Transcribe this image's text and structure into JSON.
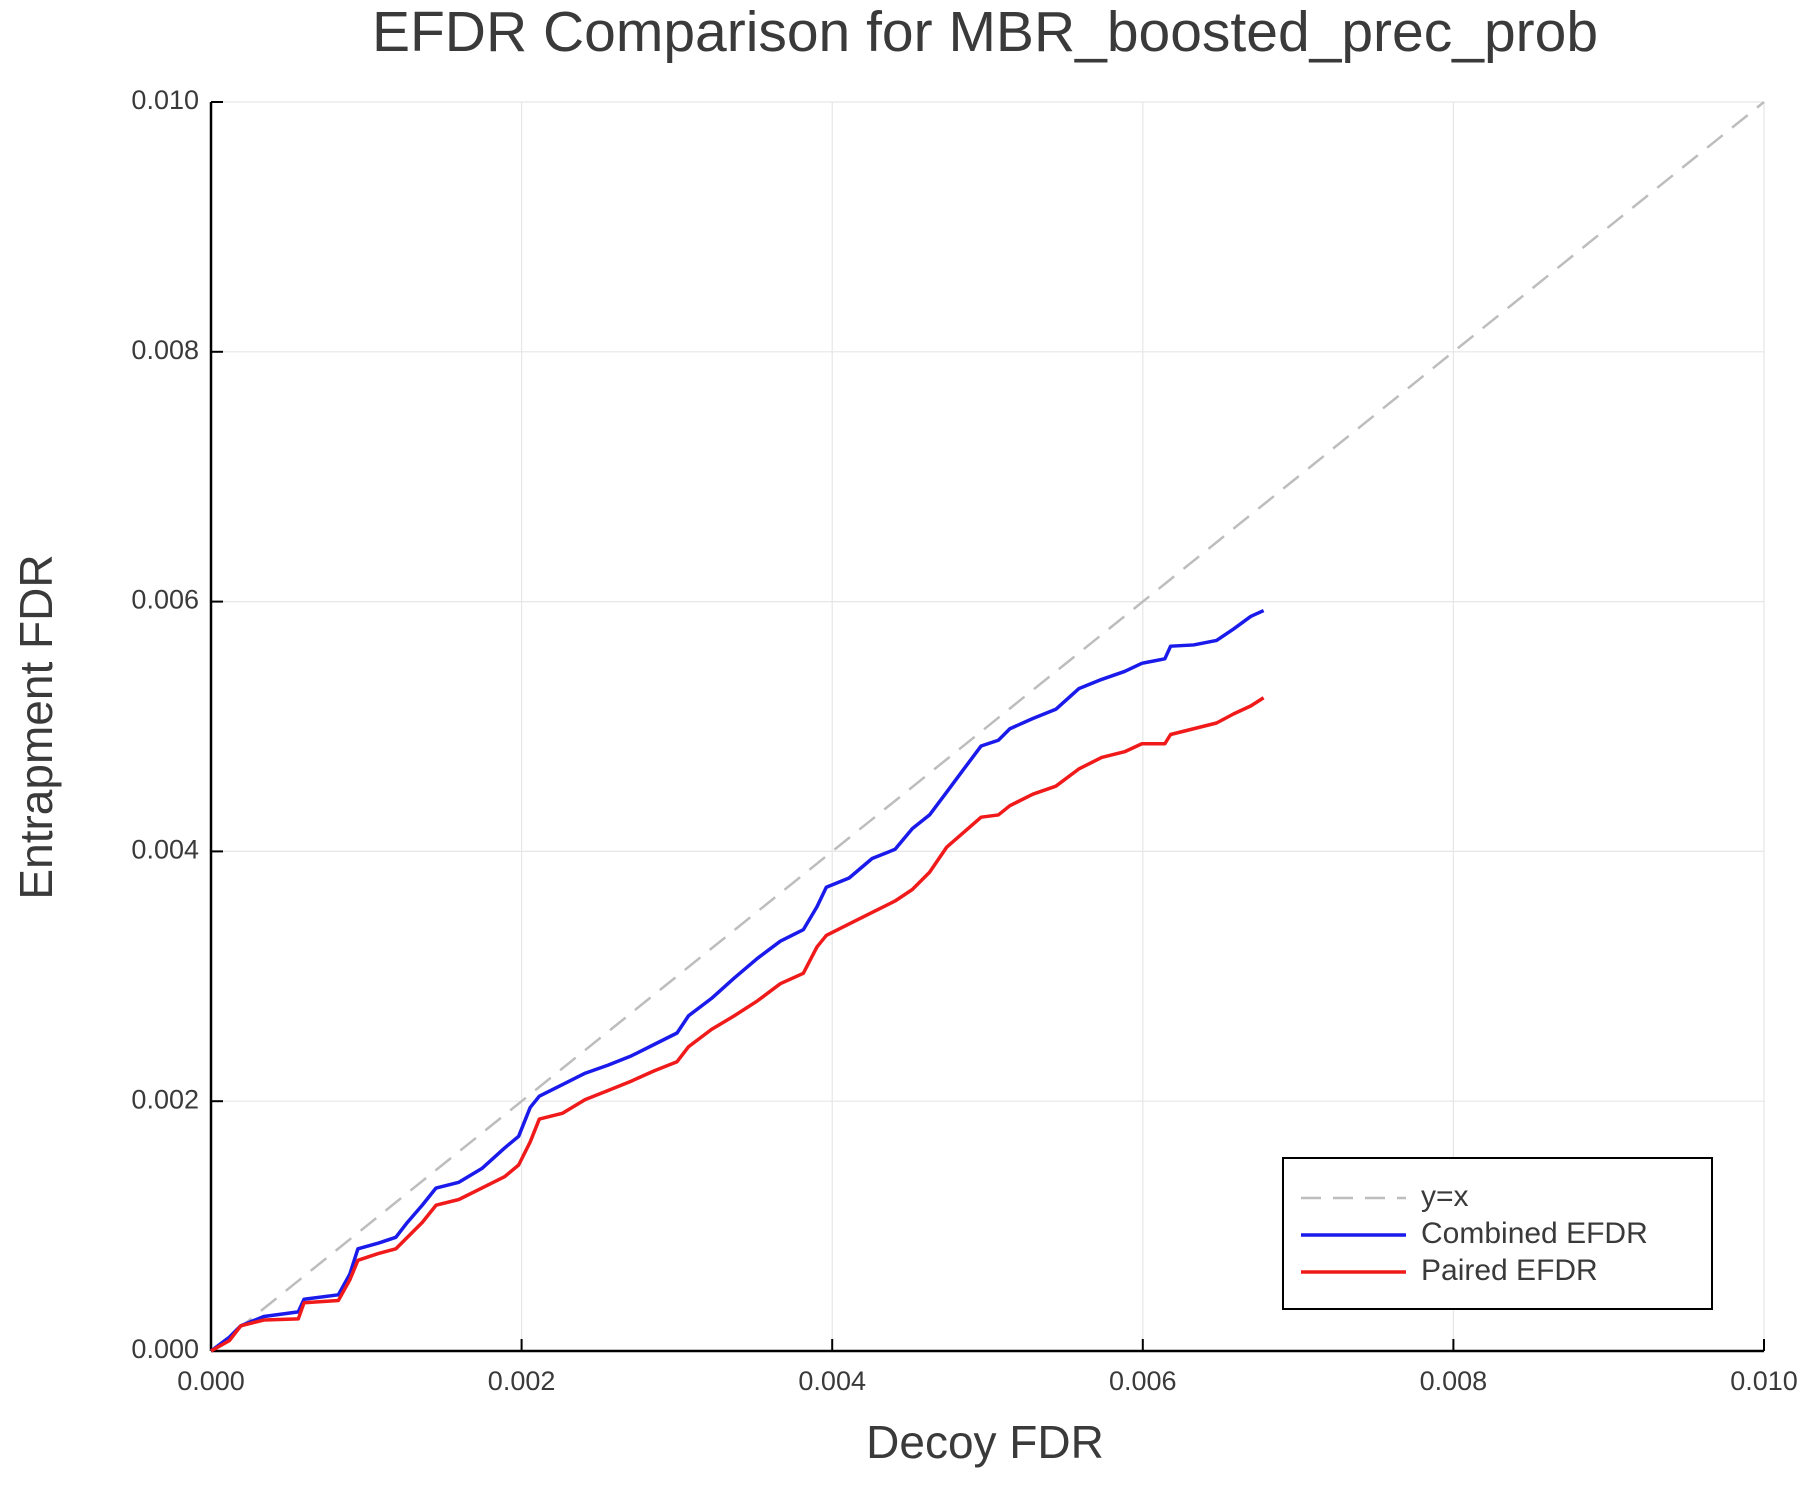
{
  "chart_data": {
    "type": "line",
    "title": "EFDR Comparison for MBR_boosted_prec_prob",
    "x_label": "Decoy FDR",
    "y_label": "Entrapment FDR",
    "xlim": [
      0,
      0.01
    ],
    "ylim": [
      0,
      0.01
    ],
    "xticks": [
      {
        "value": 0,
        "label": "0.000"
      },
      {
        "value": 0.002,
        "label": "0.002"
      },
      {
        "value": 0.004,
        "label": "0.004"
      },
      {
        "value": 0.006,
        "label": "0.006"
      },
      {
        "value": 0.008,
        "label": "0.008"
      },
      {
        "value": 0.01,
        "label": "0.010"
      }
    ],
    "yticks": [
      {
        "value": 0,
        "label": "0.000"
      },
      {
        "value": 0.002,
        "label": "0.002"
      },
      {
        "value": 0.004,
        "label": "0.004"
      },
      {
        "value": 0.006,
        "label": "0.006"
      },
      {
        "value": 0.008,
        "label": "0.008"
      },
      {
        "value": 0.01,
        "label": "0.010"
      }
    ],
    "grid": true,
    "legend": "lower right",
    "series": [
      {
        "name": "y=x",
        "color": "#bdbdbd",
        "dashed": true,
        "x": [
          0,
          0.01
        ],
        "values": [
          0,
          0.01
        ]
      },
      {
        "name": "Combined EFDR",
        "color": "#1a1aeb",
        "x": [
          0,
          0.000118,
          0.000192,
          0.00034,
          0.000562,
          0.000599,
          0.00082,
          0.000894,
          0.000946,
          0.001079,
          0.00119,
          0.001264,
          0.00136,
          0.001449,
          0.001596,
          0.001744,
          0.001892,
          0.001981,
          0.002055,
          0.002114,
          0.002262,
          0.002409,
          0.002557,
          0.002705,
          0.002853,
          0.003001,
          0.003075,
          0.003222,
          0.00337,
          0.003518,
          0.003666,
          0.003814,
          0.003902,
          0.003962,
          0.004109,
          0.004257,
          0.004405,
          0.004516,
          0.004627,
          0.004738,
          0.004848,
          0.004959,
          0.00507,
          0.005144,
          0.005292,
          0.00544,
          0.005588,
          0.005735,
          0.005883,
          0.005994,
          0.006142,
          0.006179,
          0.006327,
          0.006475,
          0.006585,
          0.006696,
          0.006778
        ],
        "values": [
          0,
          0.00011,
          0.000202,
          0.000276,
          0.000313,
          0.000414,
          0.00045,
          0.000616,
          0.000818,
          0.000864,
          0.00091,
          0.001029,
          0.001167,
          0.001305,
          0.001351,
          0.001461,
          0.001627,
          0.001719,
          0.001949,
          0.00204,
          0.002132,
          0.002224,
          0.002289,
          0.002362,
          0.002454,
          0.002546,
          0.002684,
          0.002822,
          0.002987,
          0.003143,
          0.003281,
          0.003373,
          0.003557,
          0.003713,
          0.003787,
          0.003943,
          0.004017,
          0.004182,
          0.004292,
          0.004476,
          0.00466,
          0.004844,
          0.00489,
          0.004982,
          0.005064,
          0.005138,
          0.005303,
          0.005377,
          0.005441,
          0.005506,
          0.005542,
          0.005643,
          0.005653,
          0.005689,
          0.005781,
          0.005882,
          0.005928
        ]
      },
      {
        "name": "Paired EFDR",
        "color": "#f01a1a",
        "x": [
          0,
          0.000118,
          0.000192,
          0.00034,
          0.000562,
          0.000599,
          0.00082,
          0.000894,
          0.000946,
          0.001079,
          0.00119,
          0.001264,
          0.00136,
          0.001449,
          0.001596,
          0.001744,
          0.001892,
          0.001981,
          0.002055,
          0.002114,
          0.002262,
          0.002409,
          0.002557,
          0.002705,
          0.002853,
          0.003001,
          0.003075,
          0.003222,
          0.00337,
          0.003518,
          0.003666,
          0.003814,
          0.003902,
          0.003962,
          0.004109,
          0.004257,
          0.004405,
          0.004516,
          0.004627,
          0.004738,
          0.004848,
          0.004959,
          0.00507,
          0.005144,
          0.005292,
          0.00544,
          0.005588,
          0.005735,
          0.005883,
          0.005994,
          0.006142,
          0.006179,
          0.006327,
          0.006475,
          0.006585,
          0.006696,
          0.006778
        ],
        "values": [
          0,
          8.3e-05,
          0.000202,
          0.000248,
          0.000257,
          0.000386,
          0.000404,
          0.00057,
          0.000726,
          0.000781,
          0.000818,
          0.00091,
          0.001029,
          0.001167,
          0.001213,
          0.001305,
          0.001397,
          0.001489,
          0.001673,
          0.001857,
          0.001903,
          0.002013,
          0.002086,
          0.00216,
          0.002243,
          0.002316,
          0.002436,
          0.002574,
          0.002684,
          0.002803,
          0.002941,
          0.003024,
          0.003235,
          0.003327,
          0.003419,
          0.003511,
          0.003603,
          0.003695,
          0.003833,
          0.004035,
          0.004154,
          0.004274,
          0.004292,
          0.004366,
          0.004458,
          0.004522,
          0.00466,
          0.004752,
          0.004798,
          0.004862,
          0.004862,
          0.004936,
          0.004982,
          0.005028,
          0.005101,
          0.005165,
          0.00523
        ]
      }
    ]
  }
}
